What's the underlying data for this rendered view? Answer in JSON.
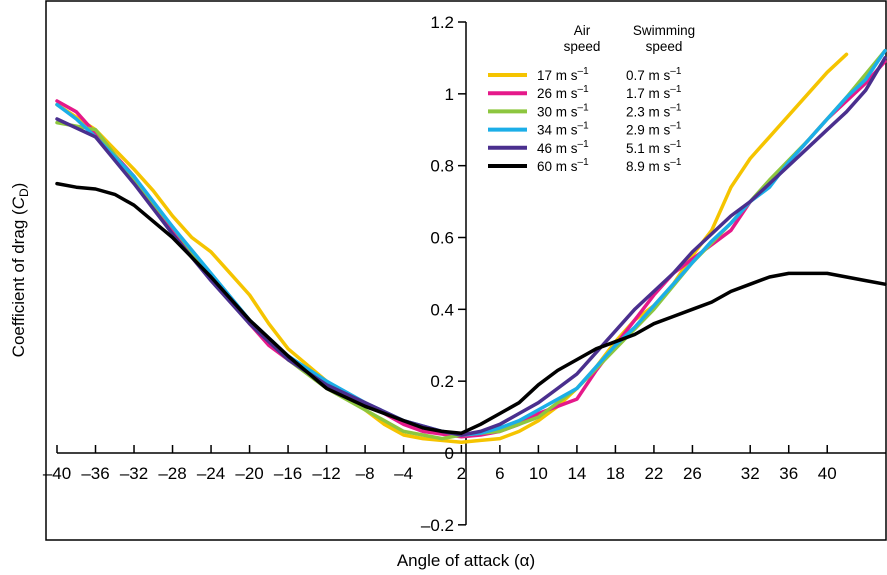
{
  "chart_data": {
    "type": "line",
    "xlabel": "Angle of attack (α)",
    "ylabel": "Coefficient of drag (C_D)",
    "ylabel_main": "Coefficient of drag (",
    "ylabel_symbol": "C",
    "ylabel_sub": "D",
    "ylabel_close": ")",
    "xlim": [
      -40,
      46
    ],
    "ylim": [
      -0.22,
      1.2
    ],
    "x_ticks": [
      -40,
      -36,
      -32,
      -28,
      -24,
      -20,
      -16,
      -12,
      -8,
      -4,
      2,
      6,
      10,
      14,
      18,
      22,
      26,
      32,
      36,
      40
    ],
    "x_tick_labels": [
      "–40",
      "–36",
      "–32",
      "–28",
      "–24",
      "–20",
      "–16",
      "–12",
      "–8",
      "–4",
      "2",
      "6",
      "10",
      "14",
      "18",
      "22",
      "26",
      "32",
      "36",
      "40"
    ],
    "y_ticks": [
      -0.2,
      0,
      0.2,
      0.4,
      0.6,
      0.8,
      1,
      1.2
    ],
    "y_tick_labels": [
      "–0.2",
      "0",
      "0.2",
      "0.4",
      "0.6",
      "0.8",
      "1",
      "1.2"
    ],
    "grid": false,
    "legend_position": "top-right",
    "legend_headers": {
      "col1_line1": "Air",
      "col1_line2": "speed",
      "col2_line1": "Swimming",
      "col2_line2": "speed"
    },
    "series": [
      {
        "name": "17 m s–1",
        "air_speed": "17 m s",
        "swimming_speed": "0.7 m s",
        "unit_exp": "–1",
        "color": "#F5C400",
        "x": [
          -40,
          -36,
          -32,
          -30,
          -28,
          -26,
          -24,
          -22,
          -20,
          -18,
          -16,
          -12,
          -8,
          -6,
          -4,
          -2,
          2,
          4,
          6,
          8,
          10,
          12,
          14,
          16,
          18,
          20,
          22,
          24,
          26,
          28,
          30,
          32,
          34,
          36,
          38,
          40,
          42
        ],
        "y": [
          0.97,
          0.9,
          0.79,
          0.73,
          0.66,
          0.6,
          0.56,
          0.5,
          0.44,
          0.36,
          0.29,
          0.2,
          0.12,
          0.08,
          0.05,
          0.04,
          0.03,
          0.035,
          0.04,
          0.06,
          0.09,
          0.13,
          0.18,
          0.24,
          0.31,
          0.37,
          0.41,
          0.47,
          0.55,
          0.62,
          0.74,
          0.82,
          0.88,
          0.94,
          1.0,
          1.06,
          1.11
        ]
      },
      {
        "name": "26 m s–1",
        "air_speed": "26 m s",
        "swimming_speed": "1.7 m s",
        "unit_exp": "–1",
        "color": "#E5198A",
        "x": [
          -40,
          -38,
          -36,
          -34,
          -32,
          -30,
          -28,
          -26,
          -24,
          -22,
          -20,
          -18,
          -16,
          -12,
          -8,
          -4,
          -2,
          2,
          4,
          6,
          8,
          10,
          12,
          14,
          16,
          18,
          20,
          22,
          24,
          26,
          28,
          30,
          32,
          34,
          36,
          38,
          40,
          42,
          44,
          46
        ],
        "y": [
          0.98,
          0.95,
          0.89,
          0.83,
          0.77,
          0.69,
          0.62,
          0.56,
          0.49,
          0.43,
          0.36,
          0.3,
          0.26,
          0.19,
          0.14,
          0.08,
          0.06,
          0.045,
          0.05,
          0.06,
          0.08,
          0.11,
          0.13,
          0.15,
          0.23,
          0.3,
          0.37,
          0.44,
          0.5,
          0.54,
          0.58,
          0.62,
          0.7,
          0.75,
          0.81,
          0.87,
          0.93,
          0.98,
          1.03,
          1.09
        ]
      },
      {
        "name": "30 m s–1",
        "air_speed": "30 m s",
        "swimming_speed": "2.3 m s",
        "unit_exp": "–1",
        "color": "#8DC63F",
        "x": [
          -40,
          -36,
          -32,
          -28,
          -24,
          -20,
          -16,
          -12,
          -8,
          -4,
          0,
          2,
          6,
          10,
          14,
          18,
          22,
          26,
          30,
          34,
          38,
          42,
          46
        ],
        "y": [
          0.92,
          0.9,
          0.76,
          0.63,
          0.49,
          0.37,
          0.26,
          0.18,
          0.12,
          0.06,
          0.04,
          0.05,
          0.06,
          0.1,
          0.18,
          0.29,
          0.4,
          0.53,
          0.64,
          0.76,
          0.87,
          0.99,
          1.12
        ]
      },
      {
        "name": "34 m s–1",
        "air_speed": "34 m s",
        "swimming_speed": "2.9 m s",
        "unit_exp": "–1",
        "color": "#1BAEE8",
        "x": [
          -40,
          -38,
          -36,
          -32,
          -28,
          -24,
          -20,
          -16,
          -12,
          -8,
          -4,
          0,
          2,
          4,
          6,
          8,
          10,
          12,
          14,
          16,
          18,
          20,
          22,
          24,
          26,
          28,
          30,
          32,
          34,
          36,
          38,
          40,
          42,
          44,
          46
        ],
        "y": [
          0.97,
          0.93,
          0.88,
          0.77,
          0.63,
          0.5,
          0.37,
          0.27,
          0.2,
          0.14,
          0.09,
          0.06,
          0.05,
          0.055,
          0.07,
          0.09,
          0.12,
          0.15,
          0.18,
          0.24,
          0.3,
          0.35,
          0.41,
          0.47,
          0.53,
          0.59,
          0.64,
          0.7,
          0.74,
          0.81,
          0.87,
          0.93,
          0.99,
          1.04,
          1.12
        ]
      },
      {
        "name": "46 m s–1",
        "air_speed": "46 m s",
        "swimming_speed": "5.1 m s",
        "unit_exp": "–1",
        "color": "#4A2F8E",
        "x": [
          -40,
          -36,
          -32,
          -28,
          -24,
          -20,
          -16,
          -12,
          -8,
          -4,
          0,
          2,
          4,
          6,
          8,
          10,
          12,
          14,
          16,
          18,
          20,
          22,
          24,
          26,
          28,
          30,
          32,
          34,
          36,
          38,
          40,
          42,
          44,
          46
        ],
        "y": [
          0.93,
          0.88,
          0.75,
          0.61,
          0.48,
          0.36,
          0.26,
          0.19,
          0.14,
          0.09,
          0.06,
          0.05,
          0.06,
          0.08,
          0.11,
          0.14,
          0.18,
          0.22,
          0.28,
          0.34,
          0.4,
          0.45,
          0.5,
          0.56,
          0.61,
          0.66,
          0.7,
          0.75,
          0.8,
          0.85,
          0.9,
          0.95,
          1.01,
          1.1
        ]
      },
      {
        "name": "60 m s–1",
        "air_speed": "60 m s",
        "swimming_speed": "8.9 m s",
        "unit_exp": "–1",
        "color": "#000000",
        "x": [
          -40,
          -38,
          -36,
          -34,
          -32,
          -28,
          -24,
          -20,
          -16,
          -12,
          -8,
          -4,
          -2,
          0,
          2,
          4,
          6,
          8,
          10,
          12,
          14,
          16,
          18,
          20,
          22,
          24,
          26,
          28,
          30,
          32,
          34,
          36,
          38,
          40,
          42,
          44,
          46
        ],
        "y": [
          0.75,
          0.74,
          0.735,
          0.72,
          0.69,
          0.6,
          0.49,
          0.37,
          0.27,
          0.18,
          0.13,
          0.09,
          0.07,
          0.06,
          0.055,
          0.08,
          0.11,
          0.14,
          0.19,
          0.23,
          0.26,
          0.29,
          0.31,
          0.33,
          0.36,
          0.38,
          0.4,
          0.42,
          0.45,
          0.47,
          0.49,
          0.5,
          0.5,
          0.5,
          0.49,
          0.48,
          0.47
        ]
      }
    ]
  }
}
